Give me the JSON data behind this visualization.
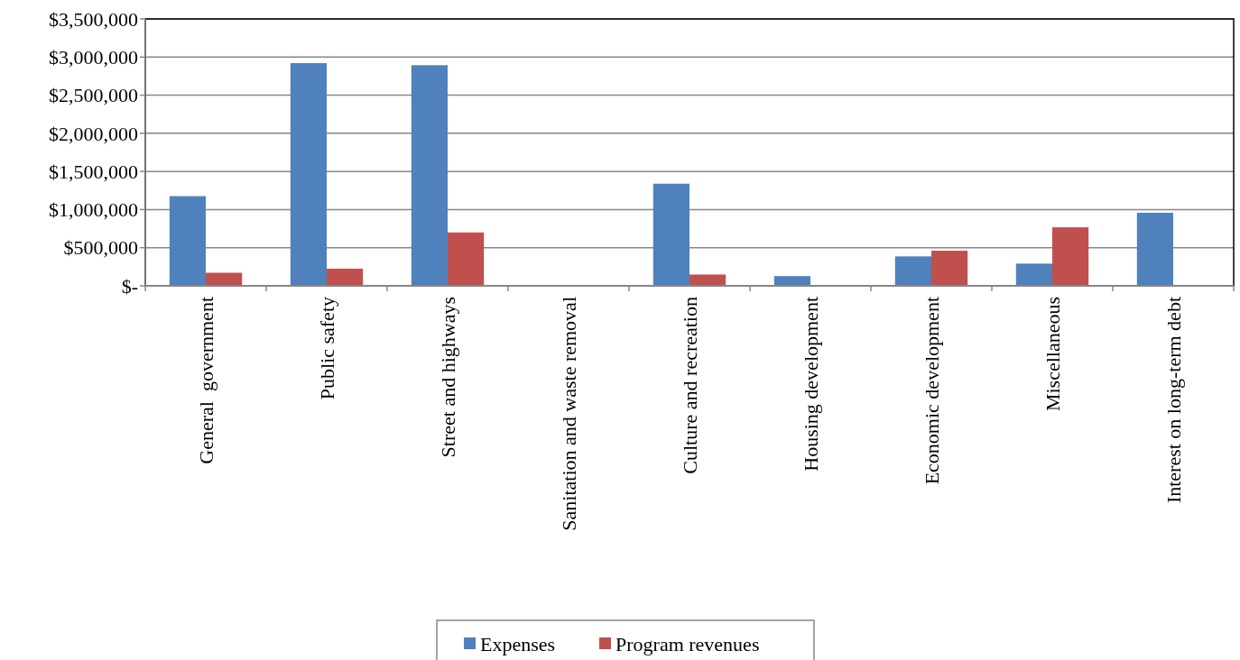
{
  "chart_data": {
    "type": "bar",
    "categories": [
      "General  government",
      "Public safety",
      "Street and highways",
      "Sanitation and waste removal",
      "Culture and recreation",
      "Housing development",
      "Economic development",
      "Miscellaneous",
      "Interest on long-term debt"
    ],
    "series": [
      {
        "name": "Expenses",
        "color": "#4f81bd",
        "values": [
          1176000,
          2920000,
          2893000,
          10000,
          1339000,
          127000,
          386000,
          291000,
          958000
        ]
      },
      {
        "name": "Program revenues",
        "color": "#c0504d",
        "values": [
          171000,
          225000,
          700000,
          8000,
          148000,
          5000,
          460000,
          767000,
          0
        ]
      }
    ],
    "ylim": [
      0,
      3500000
    ],
    "yticks": [
      {
        "value": 0,
        "label": "$-"
      },
      {
        "value": 500000,
        "label": "$500,000"
      },
      {
        "value": 1000000,
        "label": "$1,000,000"
      },
      {
        "value": 1500000,
        "label": "$1,500,000"
      },
      {
        "value": 2000000,
        "label": "$2,000,000"
      },
      {
        "value": 2500000,
        "label": "$2,500,000"
      },
      {
        "value": 3000000,
        "label": "$3,000,000"
      },
      {
        "value": 3500000,
        "label": "$3,500,000"
      }
    ],
    "grid": "y",
    "legend": "bottom"
  }
}
